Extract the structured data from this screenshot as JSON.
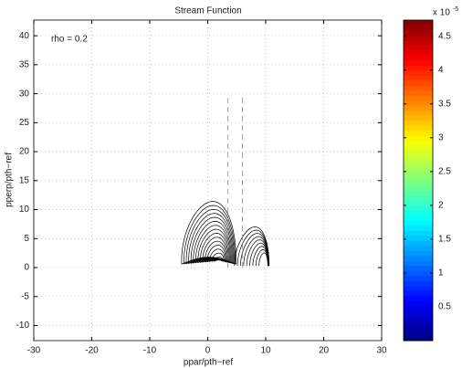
{
  "chart_data": {
    "type": "contour",
    "title": "Stream Function",
    "xlabel": "ppar/pth−ref",
    "ylabel": "pperp/pth−ref",
    "annotation": "rho = 0.2",
    "xlim": [
      -30,
      30
    ],
    "xticks": [
      -30,
      -20,
      -10,
      0,
      10,
      20,
      30
    ],
    "ylim": [
      -12.6,
      42.7
    ],
    "yticks": [
      -10,
      -5,
      0,
      5,
      10,
      15,
      20,
      25,
      30,
      35,
      40
    ],
    "grid": true,
    "line_color": "#000000",
    "colorbar": {
      "colormap": "jet",
      "lim": [
        0,
        4.74
      ],
      "ticks": [
        0.5,
        1,
        1.5,
        2,
        2.5,
        3,
        3.5,
        4,
        4.5
      ],
      "exponent_base": "x 10",
      "exponent": "-5"
    }
  }
}
